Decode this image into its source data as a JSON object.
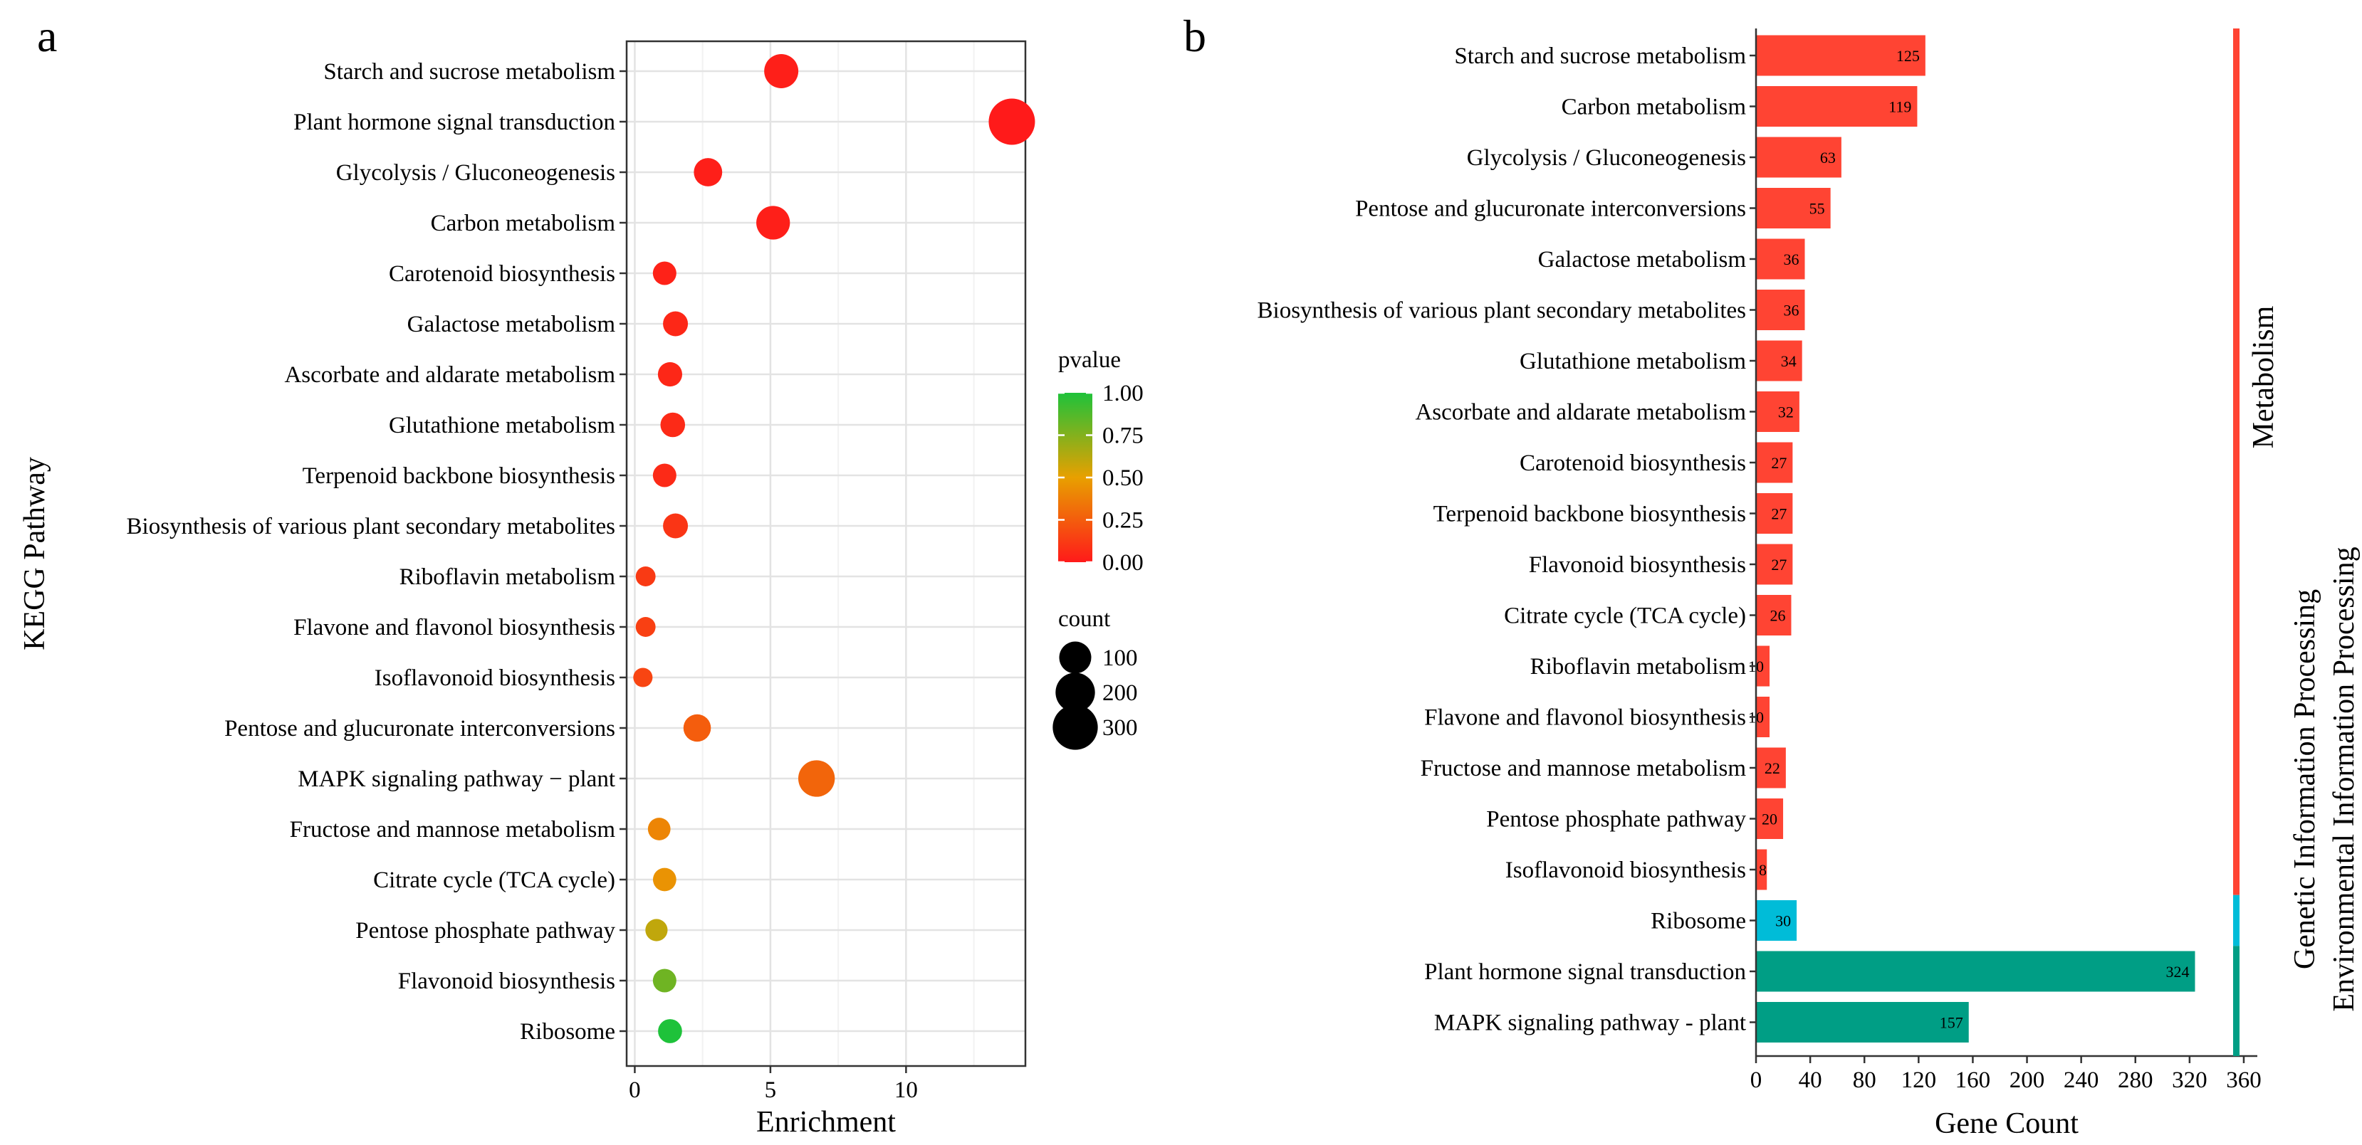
{
  "panels": {
    "a_label": "a",
    "b_label": "b"
  },
  "chart_data": [
    {
      "type": "scatter",
      "panel": "a",
      "title": "",
      "xlabel": "Enrichment",
      "ylabel": "KEGG Pathway",
      "xlim": [
        -0.3,
        14.4
      ],
      "xticks": [
        0,
        5,
        10
      ],
      "grid": true,
      "categories": [
        "Starch and sucrose metabolism",
        "Plant hormone signal transduction",
        "Glycolysis / Gluconeogenesis",
        "Carbon metabolism",
        "Carotenoid biosynthesis",
        "Galactose metabolism",
        "Ascorbate and aldarate metabolism",
        "Glutathione metabolism",
        "Terpenoid backbone biosynthesis",
        "Biosynthesis of various plant secondary metabolites",
        "Riboflavin metabolism",
        "Flavone and flavonol biosynthesis",
        "Isoflavonoid biosynthesis",
        "Pentose and glucuronate interconversions",
        "MAPK signaling pathway − plant",
        "Fructose and mannose metabolism",
        "Citrate cycle (TCA cycle)",
        "Pentose phosphate pathway",
        "Flavonoid biosynthesis",
        "Ribosome"
      ],
      "enrichment": [
        5.4,
        13.9,
        2.7,
        5.1,
        1.1,
        1.5,
        1.3,
        1.4,
        1.1,
        1.5,
        0.4,
        0.4,
        0.3,
        2.3,
        6.7,
        0.9,
        1.1,
        0.8,
        1.1,
        1.3
      ],
      "pvalue": [
        0.02,
        0.0,
        0.02,
        0.02,
        0.03,
        0.05,
        0.05,
        0.06,
        0.06,
        0.1,
        0.12,
        0.14,
        0.16,
        0.25,
        0.28,
        0.4,
        0.45,
        0.6,
        0.8,
        1.0
      ],
      "count": [
        125,
        324,
        63,
        119,
        27,
        36,
        32,
        34,
        27,
        36,
        10,
        10,
        8,
        55,
        157,
        22,
        26,
        20,
        27,
        30
      ],
      "color_legend": {
        "title": "pvalue",
        "ticks": [
          "1.00",
          "0.75",
          "0.50",
          "0.25",
          "0.00"
        ],
        "low_color": "#ff1a1a",
        "mid_color": "#e8a000",
        "high_color": "#1ec23a"
      },
      "size_legend": {
        "title": "count",
        "values": [
          100,
          200,
          300
        ],
        "labels": [
          "100",
          "200",
          "300"
        ]
      }
    },
    {
      "type": "bar",
      "panel": "b",
      "orientation": "horizontal",
      "title": "",
      "xlabel": "Gene Count",
      "ylabel": "",
      "xlim": [
        0,
        370
      ],
      "xticks": [
        0,
        40,
        80,
        120,
        160,
        200,
        240,
        280,
        320,
        360
      ],
      "categories": [
        "Starch and sucrose metabolism",
        "Carbon metabolism",
        "Glycolysis / Gluconeogenesis",
        "Pentose and glucuronate interconversions",
        "Galactose metabolism",
        "Biosynthesis of various plant secondary metabolites",
        "Glutathione metabolism",
        "Ascorbate and aldarate metabolism",
        "Carotenoid biosynthesis",
        "Terpenoid backbone biosynthesis",
        "Flavonoid biosynthesis",
        "Citrate cycle (TCA cycle)",
        "Riboflavin metabolism",
        "Flavone and flavonol biosynthesis",
        "Fructose and mannose metabolism",
        "Pentose phosphate pathway",
        "Isoflavonoid biosynthesis",
        "Ribosome",
        "Plant hormone signal transduction",
        "MAPK signaling pathway - plant"
      ],
      "values": [
        125,
        119,
        63,
        55,
        36,
        36,
        34,
        32,
        27,
        27,
        27,
        26,
        10,
        10,
        22,
        20,
        8,
        30,
        324,
        157
      ],
      "value_labels": [
        "125",
        "119",
        "63",
        "55",
        "36",
        "36",
        "34",
        "32",
        "27",
        "27",
        "27",
        "26",
        "10",
        "10",
        "22",
        "20",
        "8",
        "30",
        "324",
        "157"
      ],
      "group_index": [
        0,
        0,
        0,
        0,
        0,
        0,
        0,
        0,
        0,
        0,
        0,
        0,
        0,
        0,
        0,
        0,
        0,
        1,
        2,
        2
      ],
      "groups": [
        {
          "name": "Metabolism",
          "color": "#ff4433"
        },
        {
          "name": "Genetic Information Processing",
          "color": "#00bcd8"
        },
        {
          "name": "Environmental Information Processing",
          "color": "#009e85"
        }
      ]
    }
  ]
}
